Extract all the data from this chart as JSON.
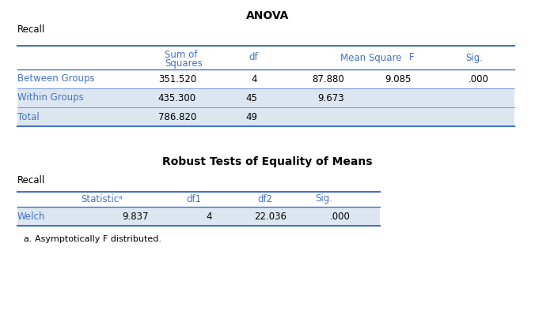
{
  "title": "ANOVA",
  "table1_label": "Recall",
  "table1_headers": [
    "",
    "Sum of\nSquares",
    "df",
    "Mean Square",
    "F",
    "Sig."
  ],
  "table1_rows": [
    [
      "Between Groups",
      "351.520",
      "4",
      "87.880",
      "9.085",
      ".000"
    ],
    [
      "Within Groups",
      "435.300",
      "45",
      "9.673",
      "",
      ""
    ],
    [
      "Total",
      "786.820",
      "49",
      "",
      "",
      ""
    ]
  ],
  "table2_title": "Robust Tests of Equality of Means",
  "table2_label": "Recall",
  "table2_headers": [
    "",
    "Statisticᵃ",
    "df1",
    "df2",
    "Sig."
  ],
  "table2_rows": [
    [
      "Welch",
      "9.837",
      "4",
      "22.036",
      ".000"
    ]
  ],
  "table2_footnote": "a. Asymptotically F distributed.",
  "bg_color": "#ffffff",
  "text_color": "#000000",
  "header_text_color": "#4472c4",
  "row_label_color": "#4472c4",
  "row_bg_light": "#dce6f1",
  "row_bg_white": "#ffffff",
  "line_color": "#4472c4",
  "title_fontsize": 10,
  "header_fontsize": 8.5,
  "cell_fontsize": 8.5,
  "label_fontsize": 8.5,
  "footnote_fontsize": 8
}
